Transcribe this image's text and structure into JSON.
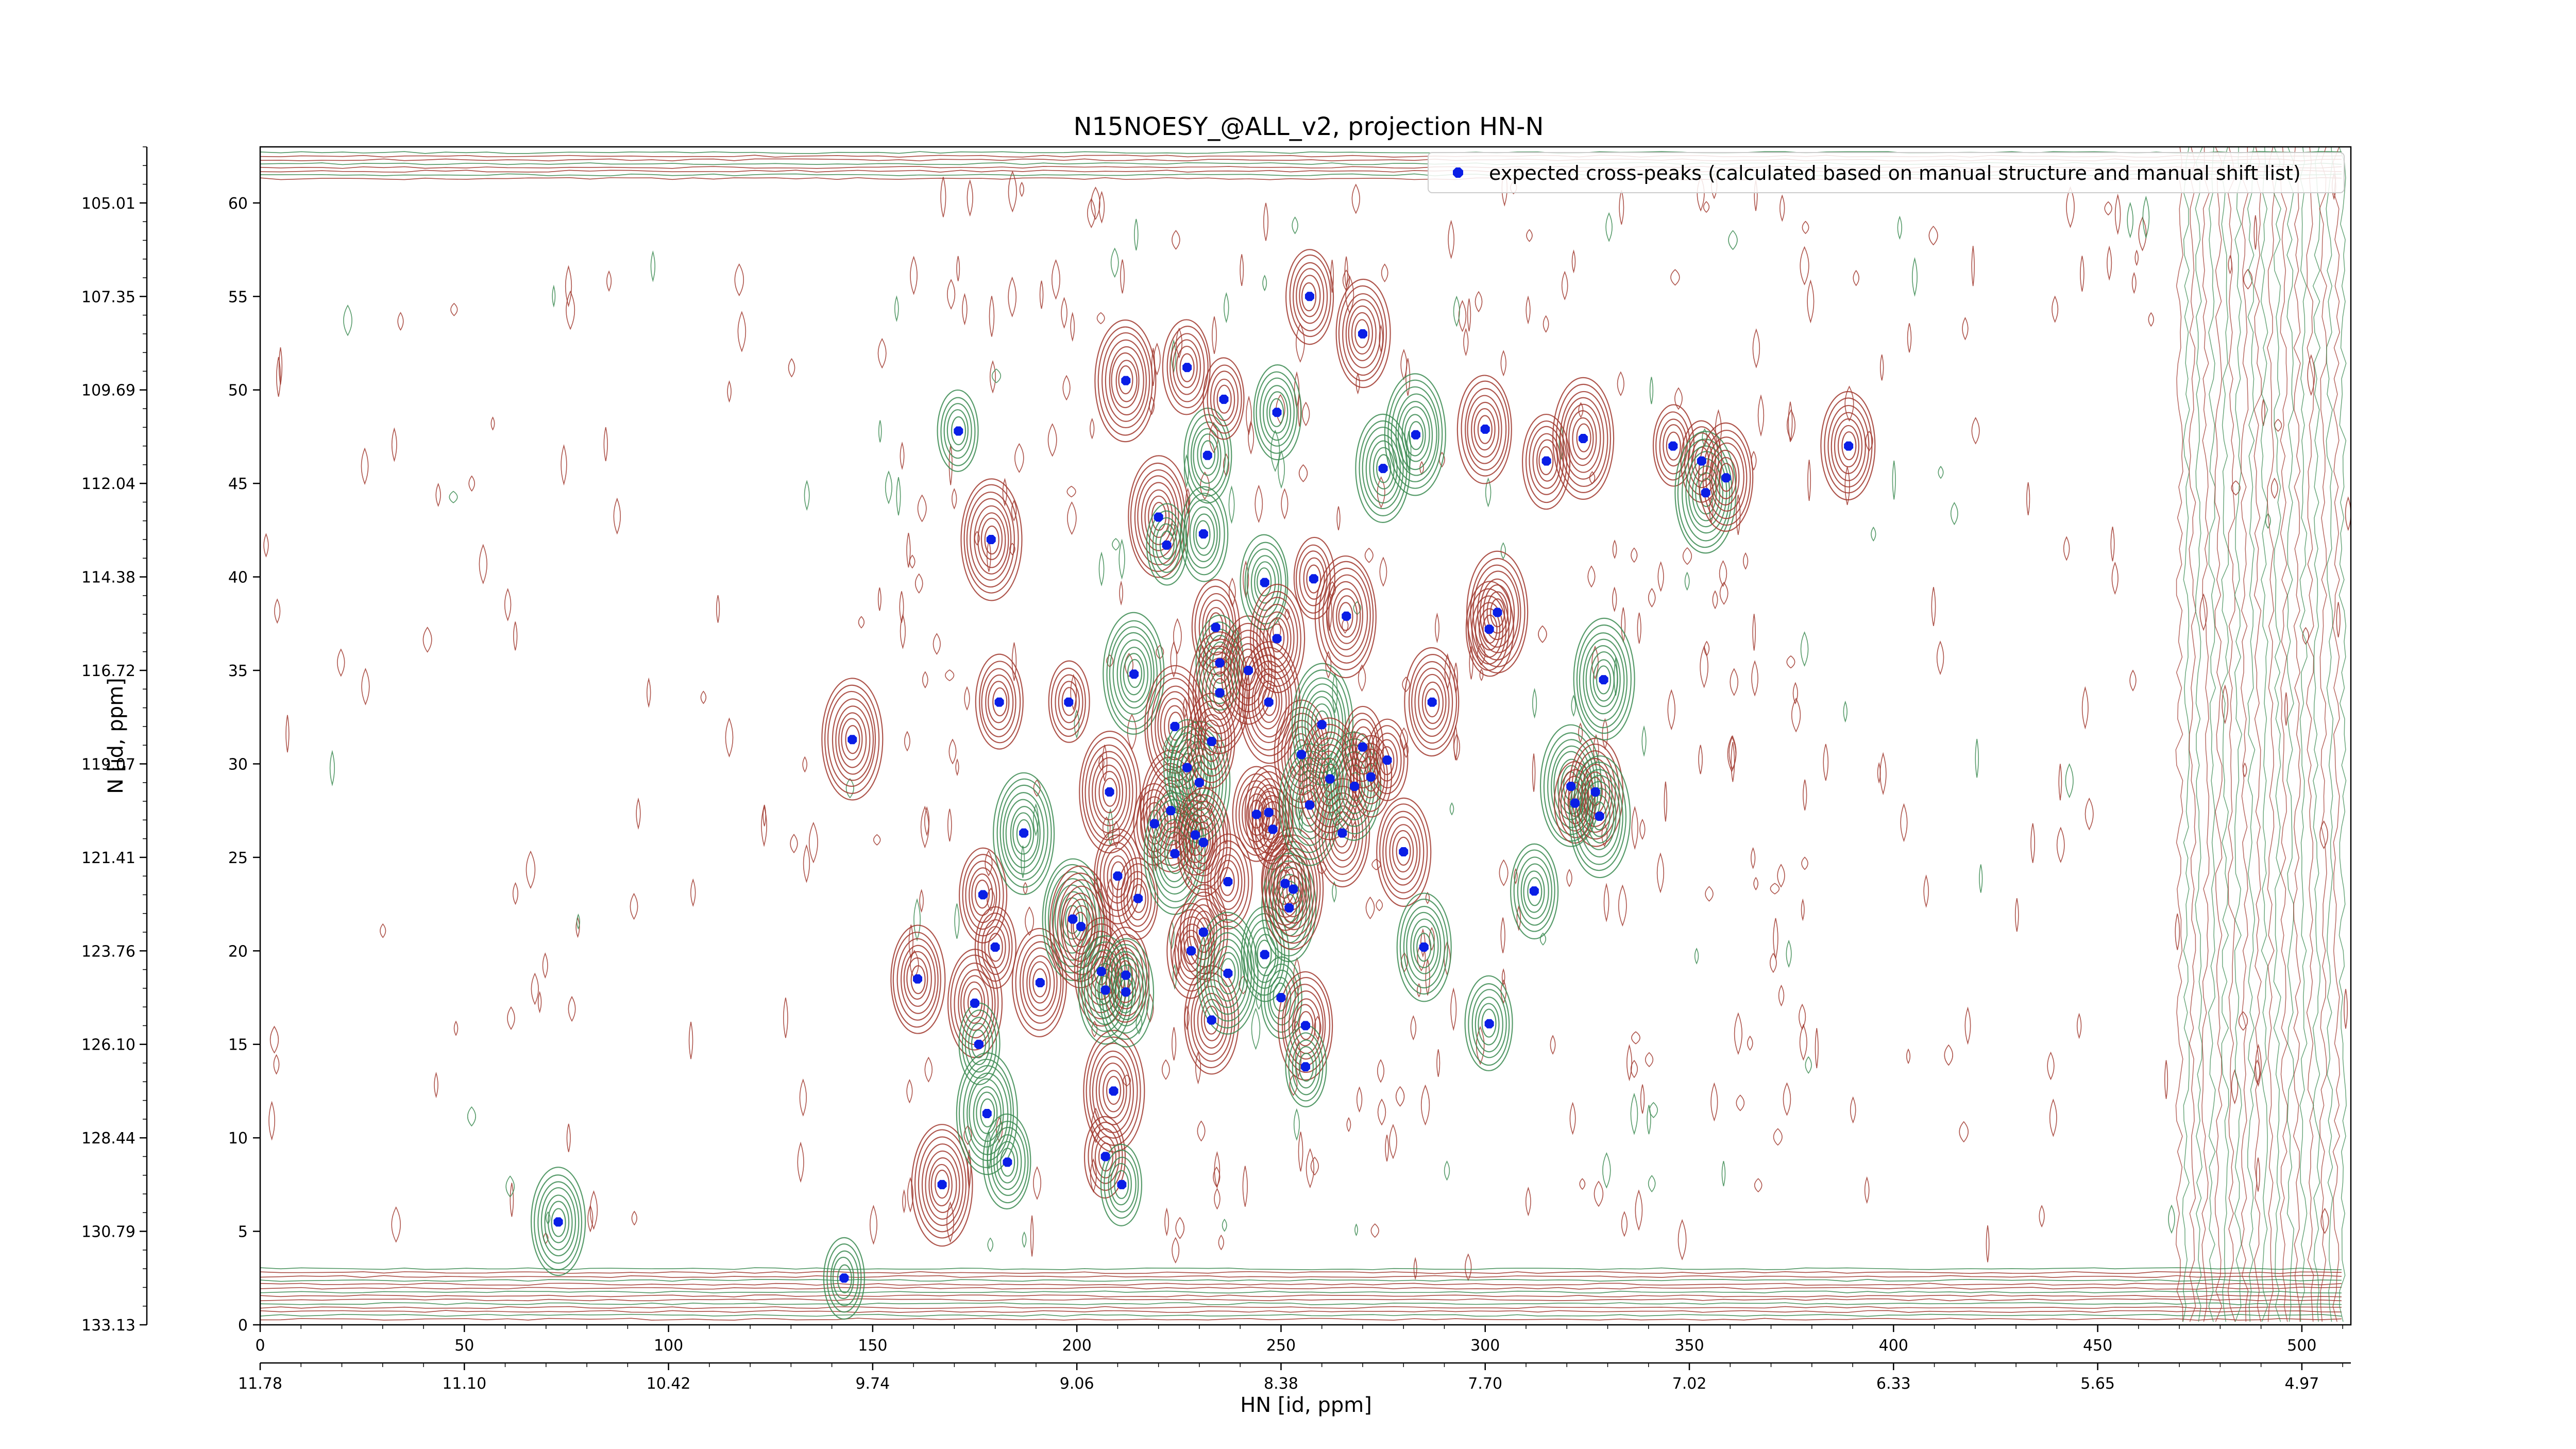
{
  "chart_data": {
    "type": "scatter",
    "title": "N15NOESY_@ALL_v2, projection HN-N",
    "xlabel": "HN [id, ppm]",
    "ylabel": "N [id, ppm]",
    "xlim": [
      0,
      512
    ],
    "ylim": [
      0,
      63
    ],
    "x_ticks": [
      0,
      50,
      100,
      150,
      200,
      250,
      300,
      350,
      400,
      450,
      500
    ],
    "y_ticks": [
      0,
      5,
      10,
      15,
      20,
      25,
      30,
      35,
      40,
      45,
      50,
      55,
      60
    ],
    "ppm_x_ticks": [
      {
        "label": "11.78",
        "x": 0
      },
      {
        "label": "11.10",
        "x": 50
      },
      {
        "label": "10.42",
        "x": 100
      },
      {
        "label": "9.74",
        "x": 150
      },
      {
        "label": "9.06",
        "x": 200
      },
      {
        "label": "8.38",
        "x": 250
      },
      {
        "label": "7.70",
        "x": 300
      },
      {
        "label": "7.02",
        "x": 350
      },
      {
        "label": "6.33",
        "x": 400
      },
      {
        "label": "5.65",
        "x": 450
      },
      {
        "label": "4.97",
        "x": 500
      }
    ],
    "ppm_y_ticks": [
      {
        "label": "133.13",
        "y": 0
      },
      {
        "label": "130.79",
        "y": 5
      },
      {
        "label": "128.44",
        "y": 10
      },
      {
        "label": "126.10",
        "y": 15
      },
      {
        "label": "123.76",
        "y": 20
      },
      {
        "label": "121.41",
        "y": 25
      },
      {
        "label": "119.07",
        "y": 30
      },
      {
        "label": "116.72",
        "y": 35
      },
      {
        "label": "114.38",
        "y": 40
      },
      {
        "label": "112.04",
        "y": 45
      },
      {
        "label": "109.69",
        "y": 50
      },
      {
        "label": "107.35",
        "y": 55
      },
      {
        "label": "105.01",
        "y": 60
      }
    ],
    "legend": "top-right",
    "colors": {
      "positive_contour": "#a0372d",
      "negative_contour": "#3a8a50",
      "peak": "#0a1ee6"
    },
    "series": [
      {
        "name": "expected cross-peaks (calculated based on manual structure and manual shift list)",
        "points": [
          [
            73,
            5.5
          ],
          [
            143,
            2.5
          ],
          [
            145,
            31.3
          ],
          [
            161,
            18.5
          ],
          [
            167,
            7.5
          ],
          [
            171,
            47.8
          ],
          [
            175,
            17.2
          ],
          [
            176,
            15
          ],
          [
            177,
            23
          ],
          [
            178,
            11.3
          ],
          [
            179,
            42
          ],
          [
            180,
            20.2
          ],
          [
            181,
            33.3
          ],
          [
            183,
            8.7
          ],
          [
            187,
            26.3
          ],
          [
            191,
            18.3
          ],
          [
            198,
            33.3
          ],
          [
            199,
            21.7
          ],
          [
            201,
            21.3
          ],
          [
            206,
            18.9
          ],
          [
            207,
            9
          ],
          [
            207,
            17.9
          ],
          [
            208,
            28.5
          ],
          [
            209,
            12.5
          ],
          [
            210,
            24
          ],
          [
            211,
            7.5
          ],
          [
            212,
            50.5
          ],
          [
            212,
            18.7
          ],
          [
            212,
            17.8
          ],
          [
            214,
            34.8
          ],
          [
            215,
            22.8
          ],
          [
            219,
            26.8
          ],
          [
            220,
            43.2
          ],
          [
            222,
            41.7
          ],
          [
            223,
            27.5
          ],
          [
            224,
            25.2
          ],
          [
            224,
            32
          ],
          [
            227,
            29.8
          ],
          [
            227,
            51.2
          ],
          [
            228,
            20
          ],
          [
            229,
            26.2
          ],
          [
            230,
            29
          ],
          [
            231,
            42.3
          ],
          [
            231,
            25.8
          ],
          [
            231,
            21
          ],
          [
            232,
            46.5
          ],
          [
            233,
            31.2
          ],
          [
            233,
            16.3
          ],
          [
            234,
            37.3
          ],
          [
            235,
            35.4
          ],
          [
            235,
            33.8
          ],
          [
            236,
            49.5
          ],
          [
            237,
            23.7
          ],
          [
            237,
            18.8
          ],
          [
            242,
            35
          ],
          [
            244,
            27.3
          ],
          [
            246,
            19.8
          ],
          [
            246,
            39.7
          ],
          [
            247,
            27.4
          ],
          [
            247,
            33.3
          ],
          [
            248,
            26.5
          ],
          [
            249,
            48.8
          ],
          [
            249,
            36.7
          ],
          [
            250,
            17.5
          ],
          [
            251,
            23.6
          ],
          [
            252,
            22.3
          ],
          [
            253,
            23.3
          ],
          [
            255,
            30.5
          ],
          [
            256,
            16
          ],
          [
            256,
            13.8
          ],
          [
            257,
            27.8
          ],
          [
            257,
            55
          ],
          [
            258,
            39.9
          ],
          [
            260,
            32.1
          ],
          [
            262,
            29.2
          ],
          [
            265,
            26.3
          ],
          [
            266,
            37.9
          ],
          [
            268,
            28.8
          ],
          [
            270,
            53
          ],
          [
            270,
            30.9
          ],
          [
            272,
            29.3
          ],
          [
            275,
            45.8
          ],
          [
            276,
            30.2
          ],
          [
            280,
            25.3
          ],
          [
            283,
            47.6
          ],
          [
            285,
            20.2
          ],
          [
            287,
            33.3
          ],
          [
            300,
            47.9
          ],
          [
            301,
            37.2
          ],
          [
            301,
            16.1
          ],
          [
            303,
            38.1
          ],
          [
            312,
            23.2
          ],
          [
            315,
            46.2
          ],
          [
            321,
            28.8
          ],
          [
            322,
            27.9
          ],
          [
            324,
            47.4
          ],
          [
            327,
            28.5
          ],
          [
            328,
            27.2
          ],
          [
            329,
            34.5
          ],
          [
            346,
            47.0
          ],
          [
            353,
            46.2
          ],
          [
            354,
            44.5
          ],
          [
            359,
            45.3
          ],
          [
            389,
            47.0
          ]
        ]
      }
    ]
  }
}
